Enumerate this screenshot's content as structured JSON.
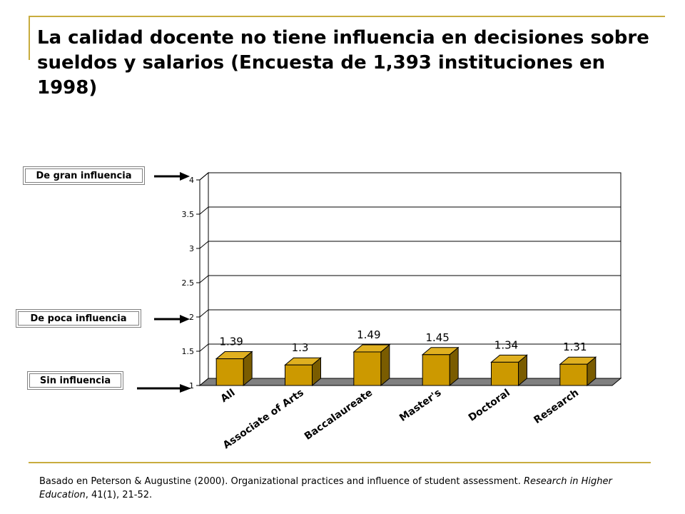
{
  "slide": {
    "title": "La calidad docente no tiene influencia en decisiones sobre sueldos y salarios (Encuesta de 1,393 instituciones en 1998)",
    "accent_color": "#c8ac3e"
  },
  "legend_labels": {
    "high": "De gran influencia",
    "low": "De poca influencia",
    "none": "Sin influencia"
  },
  "chart_data": {
    "type": "bar",
    "categories": [
      "All",
      "Associate of Arts",
      "Baccalaureate",
      "Master's",
      "Doctoral",
      "Research"
    ],
    "values": [
      1.39,
      1.3,
      1.49,
      1.45,
      1.34,
      1.31
    ],
    "data_labels": [
      "1.39",
      "1.3",
      "1.49",
      "1.45",
      "1.34",
      "1.31"
    ],
    "yticks": [
      "1",
      "1.5",
      "2",
      "2.5",
      "3",
      "3.5",
      "4"
    ],
    "ylim": [
      1,
      4
    ],
    "grid": true,
    "style": "3d",
    "bar_color": "#cc9900",
    "floor_color": "#808080"
  },
  "footer": {
    "text_before": "Basado en Peterson & Augustine (2000). Organizational practices and influence of student assessment. ",
    "journal": "Research in Higher Education",
    "text_after": ", 41(1), 21-52."
  }
}
